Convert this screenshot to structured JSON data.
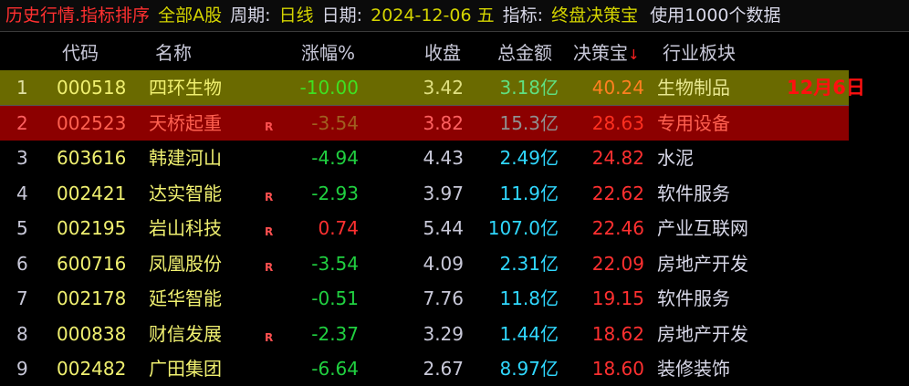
{
  "title": {
    "app": "历史行情.指标排序",
    "market": "全部A股",
    "period_label": "周期:",
    "period": "日线",
    "date_label": "日期:",
    "date": "2024-12-06 五",
    "indicator_label": "指标:",
    "indicator": "终盘决策宝",
    "usage": "使用1000个数据"
  },
  "columns": {
    "code": "代码",
    "name": "名称",
    "change": "涨幅%",
    "close": "收盘",
    "amount": "总金额",
    "decision": "决策宝",
    "sort_arrow": "↓",
    "industry": "行业板块"
  },
  "annotation": "12月6日",
  "colors": {
    "negative": "#20d040",
    "positive": "#ff3030",
    "amount": "#30d8ff",
    "selected_row": "#6a6a00",
    "highlight_row": "#8c0000"
  },
  "rows": [
    {
      "idx": "1",
      "code": "000518",
      "name": "四环生物",
      "r": "",
      "change": "-10.00",
      "close": "3.42",
      "amount": "3.18亿",
      "decision": "40.24",
      "industry": "生物制品"
    },
    {
      "idx": "2",
      "code": "002523",
      "name": "天桥起重",
      "r": "R",
      "change": "-3.54",
      "close": "3.82",
      "amount": "15.3亿",
      "decision": "28.63",
      "industry": "专用设备"
    },
    {
      "idx": "3",
      "code": "603616",
      "name": "韩建河山",
      "r": "",
      "change": "-4.94",
      "close": "4.43",
      "amount": "2.49亿",
      "decision": "24.82",
      "industry": "水泥"
    },
    {
      "idx": "4",
      "code": "002421",
      "name": "达实智能",
      "r": "R",
      "change": "-2.93",
      "close": "3.97",
      "amount": "11.9亿",
      "decision": "22.62",
      "industry": "软件服务"
    },
    {
      "idx": "5",
      "code": "002195",
      "name": "岩山科技",
      "r": "R",
      "change": "0.74",
      "close": "5.44",
      "amount": "107.0亿",
      "decision": "22.46",
      "industry": "产业互联网"
    },
    {
      "idx": "6",
      "code": "600716",
      "name": "凤凰股份",
      "r": "R",
      "change": "-3.54",
      "close": "4.09",
      "amount": "2.31亿",
      "decision": "22.09",
      "industry": "房地产开发"
    },
    {
      "idx": "7",
      "code": "002178",
      "name": "延华智能",
      "r": "",
      "change": "-0.51",
      "close": "7.76",
      "amount": "11.8亿",
      "decision": "19.15",
      "industry": "软件服务"
    },
    {
      "idx": "8",
      "code": "000838",
      "name": "财信发展",
      "r": "R",
      "change": "-2.37",
      "close": "3.29",
      "amount": "1.44亿",
      "decision": "18.62",
      "industry": "房地产开发"
    },
    {
      "idx": "9",
      "code": "002482",
      "name": "广田集团",
      "r": "",
      "change": "-6.64",
      "close": "2.67",
      "amount": "8.97亿",
      "decision": "18.60",
      "industry": "装修装饰"
    }
  ]
}
